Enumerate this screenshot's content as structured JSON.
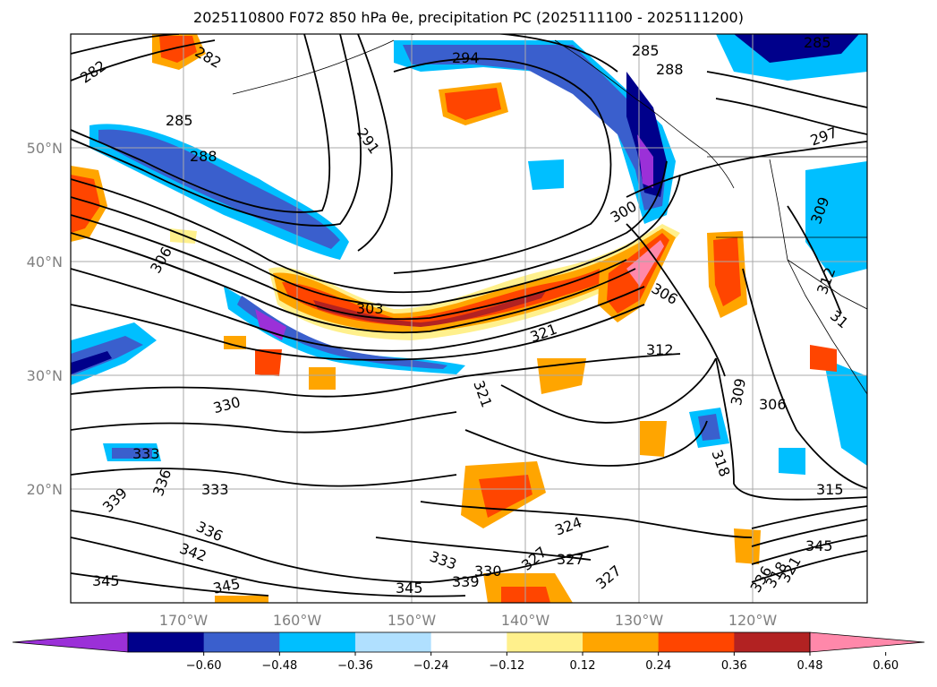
{
  "title": "2025110800 F072 850 hPa θe, precipitation PC (2025111100 - 2025111200)",
  "map": {
    "lon_labels": [
      "170°W",
      "160°W",
      "150°W",
      "140°W",
      "130°W",
      "120°W"
    ],
    "lat_labels": [
      "50°N",
      "40°N",
      "30°N",
      "20°N"
    ],
    "contour_labels": [
      "282",
      "282",
      "285",
      "288",
      "294",
      "291",
      "285",
      "288",
      "285",
      "297",
      "306",
      "300",
      "303",
      "309",
      "312",
      "321",
      "306",
      "312",
      "31",
      "321",
      "330",
      "309",
      "306",
      "333",
      "336",
      "339",
      "333",
      "318",
      "315",
      "336",
      "342",
      "345",
      "345",
      "345",
      "333",
      "330",
      "339",
      "324",
      "327",
      "327",
      "327",
      "345",
      "336",
      "318",
      "321"
    ]
  },
  "colorbar": {
    "ticks": [
      "−0.60",
      "−0.48",
      "−0.36",
      "−0.24",
      "−0.12",
      "0.12",
      "0.24",
      "0.36",
      "0.48",
      "0.60"
    ],
    "colors": [
      "#9b30d8",
      "#00008b",
      "#3a5fcd",
      "#00bfff",
      "#b0e0ff",
      "#ffffff",
      "#fff08c",
      "#ffa500",
      "#ff4500",
      "#b22222",
      "#ff88aa"
    ]
  }
}
